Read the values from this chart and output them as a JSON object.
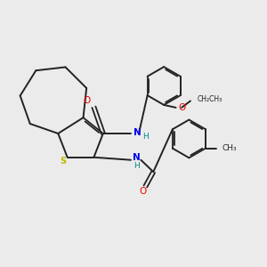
{
  "background_color": "#ebebeb",
  "atom_colors": {
    "N": "#0000ee",
    "O": "#ee0000",
    "S": "#bbbb00",
    "H": "#008888",
    "C": "#222222"
  },
  "figsize": [
    3.0,
    3.0
  ],
  "dpi": 100
}
